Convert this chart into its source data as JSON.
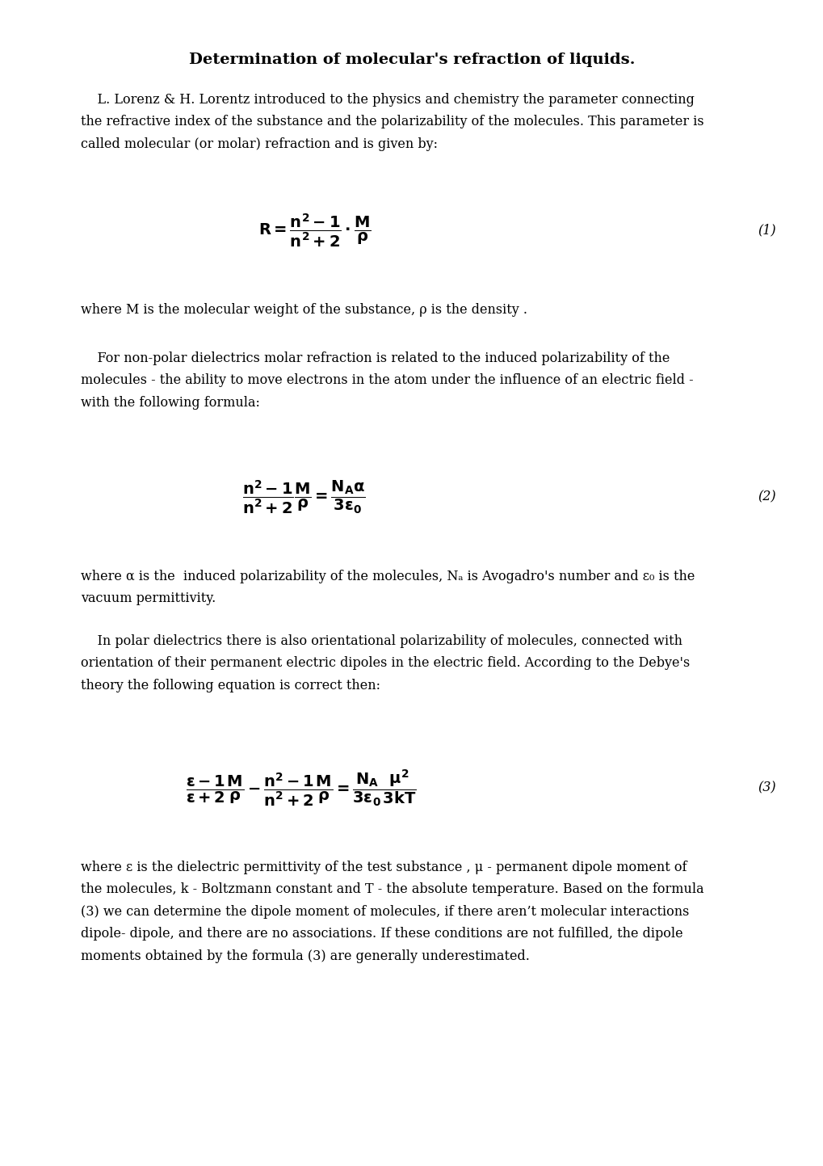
{
  "title": "Determination of molecular's refraction of liquids.",
  "bg_color": "#ffffff",
  "text_color": "#000000",
  "para1": "    L. Lorenz & H. Lorentz introduced to the physics and chemistry the parameter connecting\nthe refractive index of the substance and the polarizability of the molecules. This parameter is\ncalled molecular (or molar) refraction and is given by:",
  "eq1_label": "(1)",
  "para2": "where M is the molecular weight of the substance, ρ is the density .",
  "para3": "    For non-polar dielectrics molar refraction is related to the induced polarizability of the\nmolecules - the ability to move electrons in the atom under the influence of an electric field -\nwith the following formula:",
  "eq2_label": "(2)",
  "para4": "where α is the  induced polarizability of the molecules, Nₐ is Avogadro's number and ε₀ is the\nvacuum permittivity.",
  "para5": "    In polar dielectrics there is also orientational polarizability of molecules, connected with\norientation of their permanent electric dipoles in the electric field. According to the Debye's\ntheory the following equation is correct then:",
  "eq3_label": "(3)",
  "para6": "where ε is the dielectric permittivity of the test substance , μ - permanent dipole moment of\nthe molecules, k - Boltzmann constant and T - the absolute temperature. Based on the formula\n(3) we can determine the dipole moment of molecules, if there aren’t molecular interactions\ndipole- dipole, and there are no associations. If these conditions are not fulfilled, the dipole\nmoments obtained by the formula (3) are generally underestimated.",
  "fig_width": 10.2,
  "fig_height": 14.43,
  "dpi": 100
}
